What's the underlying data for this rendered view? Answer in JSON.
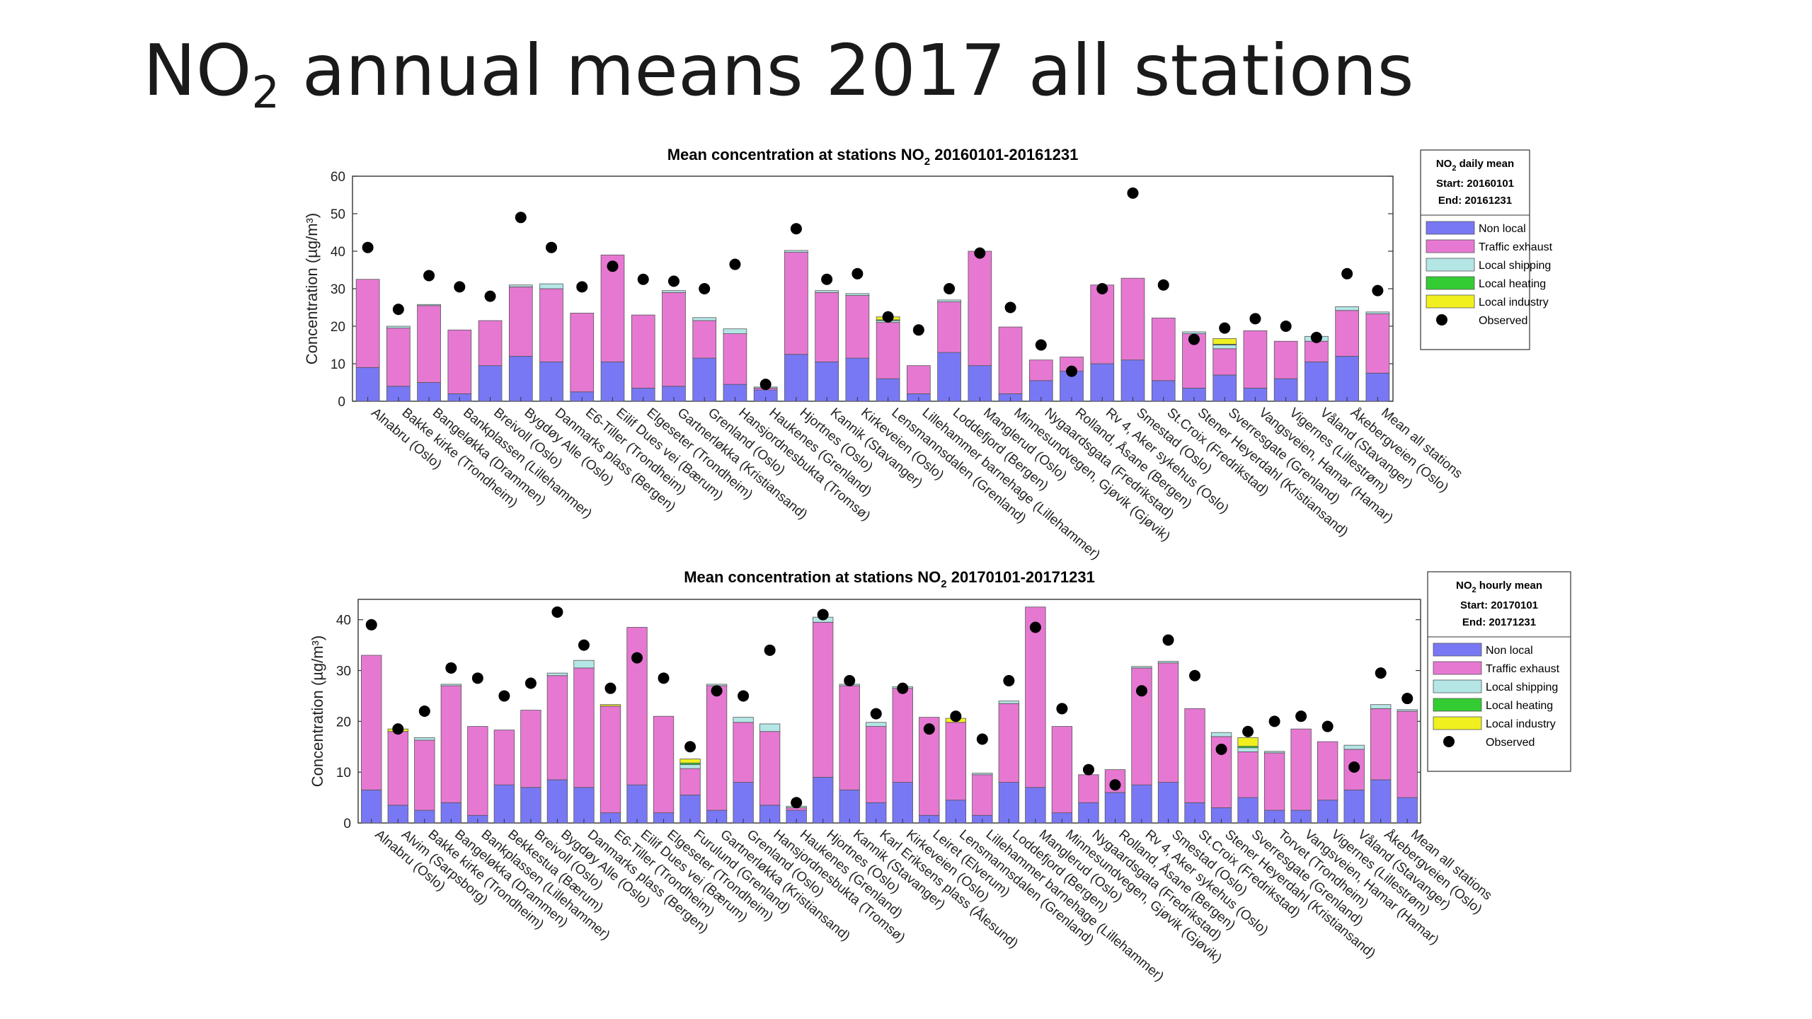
{
  "slide": {
    "title_main": "NO",
    "title_sub": "2",
    "title_rest": " annual means 2017 all stations"
  },
  "legend_items": [
    "Non local",
    "Traffic exhaust",
    "Local shipping",
    "Local heating",
    "Local industry",
    "Observed"
  ],
  "colors": {
    "non_local": "#7878f5",
    "traffic_exhaust": "#e678d2",
    "local_shipping": "#b4e6e6",
    "local_heating": "#33cc33",
    "local_industry": "#f0f020",
    "observed": "#000000"
  },
  "chart_data": [
    {
      "type": "bar",
      "stacked": true,
      "title_pre": "Mean concentration at stations NO",
      "title_sub": "2",
      "title_post": " 20160101-20161231",
      "ylabel": "Concentration (µg/m³)",
      "ylim": [
        0,
        60
      ],
      "yticks": [
        0,
        10,
        20,
        30,
        40,
        50,
        60
      ],
      "legend": {
        "title_pre": "NO",
        "title_sub": "2",
        "title_post": " daily mean",
        "start": "Start: 20160101",
        "end": "End:  20161231",
        "placement": "top-right, outside"
      },
      "categories": [
        "Alnabru (Oslo)",
        "Bakke kirke (Trondheim)",
        "Bangeløkka (Drammen)",
        "Bankplassen (Lillehammer)",
        "Breivoll (Oslo)",
        "Bygdøy Alle (Oslo)",
        "Danmarks plass (Bergen)",
        "E6-Tiller (Trondheim)",
        "Eilif Dues vei (Bærum)",
        "Elgeseter (Trondheim)",
        "Gartnerløkka (Kristiansand)",
        "Grenland (Oslo)",
        "Hansjordnesbukta (Tromsø)",
        "Haukenes (Grenland)",
        "Hjortnes (Oslo)",
        "Kannik (Stavanger)",
        "Kirkeveien (Oslo)",
        "Lensmannsdalen (Grenland)",
        "Lillehammer barnehage (Lillehammer)",
        "Loddefjord (Bergen)",
        "Manglerud (Oslo)",
        "Minnesundvegen, Gjøvik (Gjøvik)",
        "Nygaardsgata (Fredrikstad)",
        "Rolland, Åsane (Bergen)",
        "Rv 4, Aker sykehus (Oslo)",
        "Smestad (Oslo)",
        "St.Croix (Fredrikstad)",
        "Stener Heyerdahl (Kristiansand)",
        "Sverresgate (Grenland)",
        "Vangsveien, Hamar (Hamar)",
        "Vigernes (Lillestrøm)",
        "Våland (Stavanger)",
        "Åkebergveien (Oslo)",
        "Mean all stations"
      ],
      "series": [
        {
          "name": "Non local",
          "values": [
            9,
            4,
            5,
            2,
            9.5,
            12,
            10.5,
            2.5,
            10.5,
            3.5,
            4,
            11.5,
            4.5,
            3,
            12.5,
            10.5,
            11.5,
            6,
            2,
            13,
            9.5,
            2,
            5.5,
            8,
            10,
            11,
            5.5,
            3.5,
            7,
            3.5,
            6,
            10.5,
            12,
            7.5
          ]
        },
        {
          "name": "Traffic exhaust",
          "values": [
            23.5,
            15.5,
            20.5,
            17,
            12,
            18.5,
            19.5,
            21,
            28.5,
            19.5,
            25,
            10,
            13.5,
            0.5,
            27.2,
            18.5,
            16.7,
            15,
            7.5,
            13.5,
            30.5,
            17.8,
            5.5,
            3.8,
            21,
            21.8,
            16.7,
            14.5,
            7,
            15.3,
            10,
            5.5,
            12.2,
            15.8
          ]
        },
        {
          "name": "Local shipping",
          "values": [
            0,
            0.5,
            0.3,
            0,
            0,
            0.5,
            1.3,
            0,
            0,
            0,
            0.5,
            0.8,
            1.3,
            0.3,
            0.5,
            0.5,
            0.5,
            0.5,
            0,
            0.5,
            0,
            0,
            0,
            0,
            0,
            0,
            0,
            0.5,
            1,
            0,
            0,
            1.3,
            1,
            0.5
          ]
        },
        {
          "name": "Local heating",
          "values": [
            0,
            0,
            0,
            0,
            0,
            0,
            0,
            0,
            0,
            0,
            0,
            0,
            0,
            0,
            0,
            0,
            0,
            0.2,
            0,
            0,
            0,
            0,
            0,
            0,
            0,
            0,
            0,
            0,
            0.2,
            0,
            0,
            0,
            0,
            0
          ]
        },
        {
          "name": "Local industry",
          "values": [
            0,
            0,
            0,
            0,
            0,
            0,
            0,
            0,
            0,
            0,
            0,
            0,
            0,
            0,
            0,
            0,
            0,
            0.8,
            0,
            0,
            0,
            0,
            0,
            0,
            0,
            0,
            0,
            0,
            1.5,
            0,
            0,
            0,
            0,
            0
          ]
        }
      ],
      "observed": [
        41,
        24.5,
        33.5,
        30.5,
        28,
        49,
        41,
        30.5,
        36,
        32.5,
        32,
        30,
        36.5,
        4.5,
        46,
        32.5,
        34,
        22.5,
        19,
        30,
        39.5,
        25,
        15,
        8,
        30,
        55.5,
        31,
        16.5,
        19.5,
        22,
        20,
        17,
        34,
        29.5
      ]
    },
    {
      "type": "bar",
      "stacked": true,
      "title_pre": "Mean concentration at stations NO",
      "title_sub": "2",
      "title_post": " 20170101-20171231",
      "ylabel": "Concentration (µg/m³)",
      "ylim": [
        0,
        44
      ],
      "yticks": [
        0,
        10,
        20,
        30,
        40
      ],
      "legend": {
        "title_pre": "NO",
        "title_sub": "2",
        "title_post": " hourly mean",
        "start": "Start: 20170101",
        "end": "End:  20171231",
        "placement": "top-right, outside"
      },
      "categories": [
        "Alnabru (Oslo)",
        "Alvim (Sarpsborg)",
        "Bakke kirke (Trondheim)",
        "Bangeløkka (Drammen)",
        "Bankplassen (Lillehammer)",
        "Bekkestua (Bærum)",
        "Breivoll (Oslo)",
        "Bygdøy Alle (Oslo)",
        "Danmarks plass (Bergen)",
        "E6-Tiller (Trondheim)",
        "Eilif Dues vei (Bærum)",
        "Elgeseter (Trondheim)",
        "Furulund (Grenland)",
        "Gartnerløkka (Kristiansand)",
        "Grenland (Oslo)",
        "Hansjordnesbukta (Tromsø)",
        "Haukenes (Grenland)",
        "Hjortnes (Oslo)",
        "Kannik (Stavanger)",
        "Karl Eriksens plass (Ålesund)",
        "Kirkeveien (Oslo)",
        "Leiret (Elverum)",
        "Lensmannsdalen (Grenland)",
        "Lillehammer barnehage (Lillehammer)",
        "Loddefjord (Bergen)",
        "Manglerud (Oslo)",
        "Minnesundvegen, Gjøvik (Gjøvik)",
        "Nygaardsgata (Fredrikstad)",
        "Rolland, Åsane (Bergen)",
        "Rv 4, Aker sykehus (Oslo)",
        "Smestad (Oslo)",
        "St.Croix (Fredrikstad)",
        "Stener Heyerdahl (Kristiansand)",
        "Sverresgate (Grenland)",
        "Torvet (Trondheim)",
        "Vangsveien, Hamar (Hamar)",
        "Vigernes (Lillestrøm)",
        "Våland (Stavanger)",
        "Åkebergveien (Oslo)",
        "Mean all stations"
      ],
      "series": [
        {
          "name": "Non local",
          "values": [
            6.5,
            3.5,
            2.5,
            4,
            1.5,
            7.5,
            7,
            8.5,
            7,
            2,
            7.5,
            2,
            5.5,
            2.5,
            8,
            3.5,
            2.5,
            9,
            6.5,
            4,
            8,
            1.5,
            4.5,
            1.5,
            8,
            7,
            2,
            4,
            6,
            7.5,
            8,
            4,
            3,
            5,
            2.5,
            2.5,
            4.5,
            6.5,
            8.5,
            5
          ]
        },
        {
          "name": "Traffic exhaust",
          "values": [
            26.5,
            14.5,
            13.8,
            23,
            17.5,
            10.8,
            15.2,
            20.5,
            23.5,
            21,
            31,
            19,
            5.2,
            24.5,
            11.8,
            14.5,
            0.5,
            30.5,
            20.5,
            15,
            18.5,
            19.3,
            15.3,
            8,
            15.5,
            35.5,
            17,
            5.5,
            4.5,
            23,
            23.5,
            18.5,
            14,
            9,
            11.3,
            16,
            11.5,
            8,
            14,
            17
          ]
        },
        {
          "name": "Local shipping",
          "values": [
            0,
            0,
            0.5,
            0.3,
            0,
            0,
            0,
            0.5,
            1.5,
            0,
            0,
            0,
            0.8,
            0.3,
            1,
            1.5,
            0.3,
            1,
            0.3,
            0.8,
            0.3,
            0,
            0,
            0.3,
            0.5,
            0,
            0,
            0,
            0,
            0.3,
            0.3,
            0,
            0.8,
            0.8,
            0.3,
            0,
            0,
            0.8,
            0.8,
            0.3
          ]
        },
        {
          "name": "Local heating",
          "values": [
            0,
            0,
            0,
            0,
            0,
            0,
            0,
            0,
            0,
            0,
            0,
            0,
            0.3,
            0,
            0,
            0,
            0,
            0,
            0,
            0,
            0,
            0,
            0,
            0,
            0,
            0,
            0,
            0,
            0,
            0,
            0,
            0,
            0,
            0.3,
            0,
            0,
            0,
            0,
            0,
            0
          ]
        },
        {
          "name": "Local industry",
          "values": [
            0,
            0.5,
            0,
            0,
            0,
            0,
            0,
            0,
            0,
            0.3,
            0,
            0,
            0.8,
            0,
            0,
            0,
            0,
            0,
            0,
            0,
            0,
            0,
            0.8,
            0,
            0,
            0,
            0,
            0,
            0,
            0,
            0,
            0,
            0,
            1.7,
            0,
            0,
            0,
            0,
            0,
            0
          ]
        }
      ],
      "observed": [
        39,
        18.5,
        22,
        30.5,
        28.5,
        25,
        27.5,
        41.5,
        35,
        26.5,
        32.5,
        28.5,
        15,
        26,
        25,
        34,
        4,
        41,
        28,
        21.5,
        26.5,
        18.5,
        21,
        16.5,
        28,
        38.5,
        22.5,
        10.5,
        7.5,
        26,
        36,
        29,
        14.5,
        18,
        20,
        21,
        19,
        11,
        29.5,
        24.5
      ]
    }
  ]
}
